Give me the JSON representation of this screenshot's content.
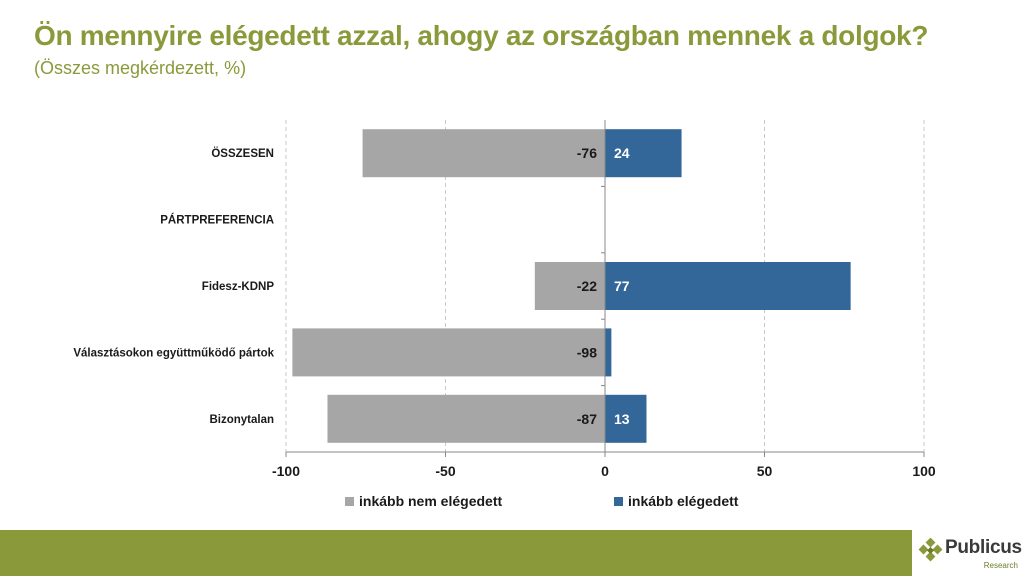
{
  "header": {
    "title": "Ön mennyire elégedett azzal, ahogy az országban mennek a dolgok?",
    "subtitle": "(Összes megkérdezett, %)"
  },
  "colors": {
    "accent": "#8a9a3b",
    "negative": "#a6a6a6",
    "positive": "#336699"
  },
  "chart_data": {
    "type": "bar",
    "orientation": "horizontal-diverging",
    "categories": [
      "ÖSSZESEN",
      "PÁRTPREFERENCIA",
      "Fidesz-KDNP",
      "Választásokon együttműködő pártok",
      "Bizonytalan"
    ],
    "series": [
      {
        "name": "inkább nem elégedett",
        "color": "#a6a6a6",
        "values": [
          -76,
          null,
          -22,
          -98,
          -87
        ]
      },
      {
        "name": "inkább elégedett",
        "color": "#336699",
        "values": [
          24,
          null,
          77,
          2,
          13
        ]
      }
    ],
    "data_labels": {
      "inkább nem elégedett": [
        "-76",
        "",
        "-22",
        "-98",
        "-87"
      ],
      "inkább elégedett": [
        "24",
        "",
        "77",
        "",
        "13"
      ]
    },
    "xlim": [
      -100,
      100
    ],
    "xticks": [
      -100,
      -50,
      0,
      50,
      100
    ],
    "grid": true,
    "legend": "bottom"
  },
  "logo": {
    "name": "Publicus",
    "tagline": "Research"
  }
}
